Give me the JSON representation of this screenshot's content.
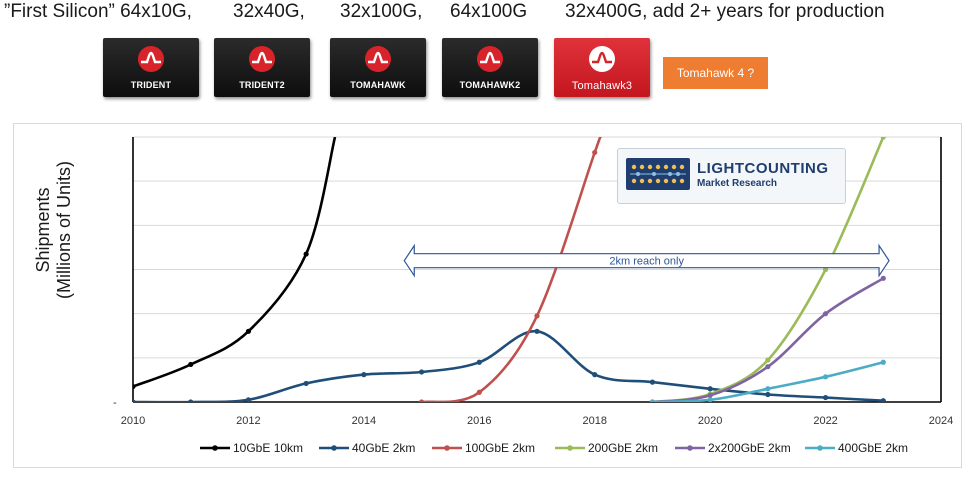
{
  "header": {
    "items": [
      "”First Silicon” 64x10G,",
      "32x40G,",
      "32x100G,",
      "64x100G",
      "32x400G,  add 2+ years for production"
    ]
  },
  "logos": [
    {
      "name": "TRIDENT",
      "icon": "broadcom-pulse-icon"
    },
    {
      "name": "TRIDENT2",
      "icon": "broadcom-pulse-icon"
    },
    {
      "name": "TOMAHAWK",
      "icon": "broadcom-pulse-icon"
    },
    {
      "name": "TOMAHAWK2",
      "icon": "broadcom-pulse-icon"
    },
    {
      "name": "Tomahawk3",
      "icon": "broadcom-pulse-icon"
    }
  ],
  "badge": {
    "label": "Tomahawk 4 ?",
    "color": "#ee7d31"
  },
  "lightcounting": {
    "title": "LIGHTCOUNTING",
    "subtitle": "Market Research"
  },
  "chart_data": {
    "type": "line",
    "ylabel_lines": [
      "Shipments",
      "(Millions of Units)"
    ],
    "xlabel": "",
    "y_tick_label": "-",
    "x_ticks": [
      2010,
      2012,
      2014,
      2016,
      2018,
      2020,
      2022,
      2024
    ],
    "xlim": [
      2010,
      2024
    ],
    "ylim": [
      0,
      6
    ],
    "grid": true,
    "legend_position": "bottom",
    "annotation": {
      "text": "2km reach only",
      "x_start": 2014.7,
      "x_end": 2023.1,
      "y": 3.2
    },
    "series": [
      {
        "name": "10GbE 10km",
        "color": "#000000",
        "x": [
          2010,
          2011,
          2012,
          2013
        ],
        "y": [
          0.35,
          0.85,
          1.6,
          3.35
        ],
        "extends_to": [
          2013.5,
          6
        ]
      },
      {
        "name": "40GbE 2km",
        "color": "#1f4e79",
        "x": [
          2010,
          2011,
          2012,
          2013,
          2014,
          2015,
          2016,
          2017,
          2018,
          2019,
          2020,
          2021,
          2022,
          2023
        ],
        "y": [
          0,
          0,
          0.05,
          0.42,
          0.62,
          0.68,
          0.9,
          1.6,
          0.62,
          0.45,
          0.3,
          0.17,
          0.1,
          0.03
        ]
      },
      {
        "name": "100GbE 2km",
        "color": "#c0504d",
        "x": [
          2015,
          2016,
          2017,
          2018
        ],
        "y": [
          0,
          0.22,
          1.95,
          5.65
        ],
        "extends_to": [
          2018.1,
          6
        ]
      },
      {
        "name": "200GbE 2km",
        "color": "#9bbb59",
        "x": [
          2019,
          2020,
          2021,
          2022,
          2023
        ],
        "y": [
          0,
          0.18,
          0.95,
          3.0,
          6
        ]
      },
      {
        "name": "2x200GbE 2km",
        "color": "#8064a2",
        "x": [
          2019,
          2020,
          2021,
          2022,
          2023
        ],
        "y": [
          0,
          0.15,
          0.8,
          2.0,
          2.8
        ]
      },
      {
        "name": "400GbE 2km",
        "color": "#4bacc6",
        "x": [
          2019,
          2020,
          2021,
          2022,
          2023
        ],
        "y": [
          0,
          0.05,
          0.3,
          0.57,
          0.9
        ]
      }
    ]
  }
}
